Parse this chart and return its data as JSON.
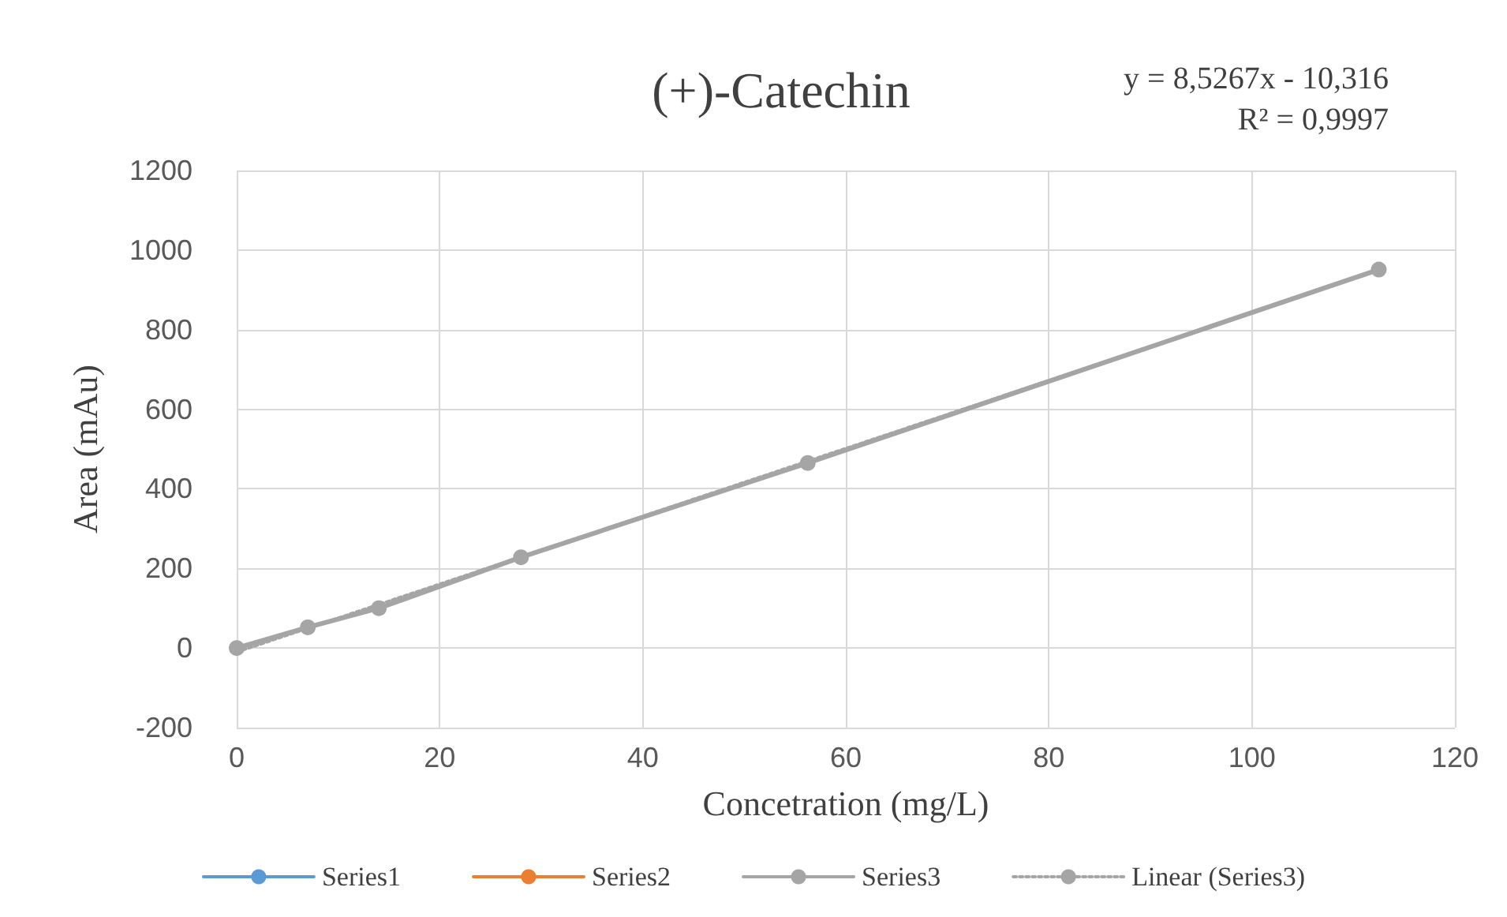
{
  "chart_data": {
    "type": "line",
    "title": "(+)-Catechin",
    "xlabel": "Concetration (mg/L)",
    "ylabel": "Area (mAu)",
    "annotations": [
      "y = 8,5267x - 10,316",
      "R² = 0,9997"
    ],
    "x": [
      0,
      7,
      14,
      28,
      56.25,
      112.5
    ],
    "series": [
      {
        "name": "Series1",
        "color": "#5b9bd5",
        "values": [
          null,
          null,
          null,
          null,
          null,
          null
        ]
      },
      {
        "name": "Series2",
        "color": "#ed7d31",
        "values": [
          null,
          null,
          null,
          null,
          null,
          null
        ]
      },
      {
        "name": "Series3",
        "color": "#a5a5a5",
        "values": [
          0,
          52,
          100,
          228,
          465,
          951
        ]
      },
      {
        "name": "Linear (Series3)",
        "color": "#a5a5a5",
        "x": [
          0,
          112.5
        ],
        "values": [
          -10,
          949
        ],
        "line_style": "dotted",
        "marker": "none"
      }
    ],
    "xlim": [
      0,
      120
    ],
    "xticks": [
      0,
      20,
      40,
      60,
      80,
      100,
      120
    ],
    "ylim": [
      -200,
      1200
    ],
    "yticks": [
      -200,
      0,
      200,
      400,
      600,
      800,
      1000,
      1200
    ],
    "grid": true,
    "legend": "bottom",
    "marker": "circle",
    "line_style": "solid"
  }
}
